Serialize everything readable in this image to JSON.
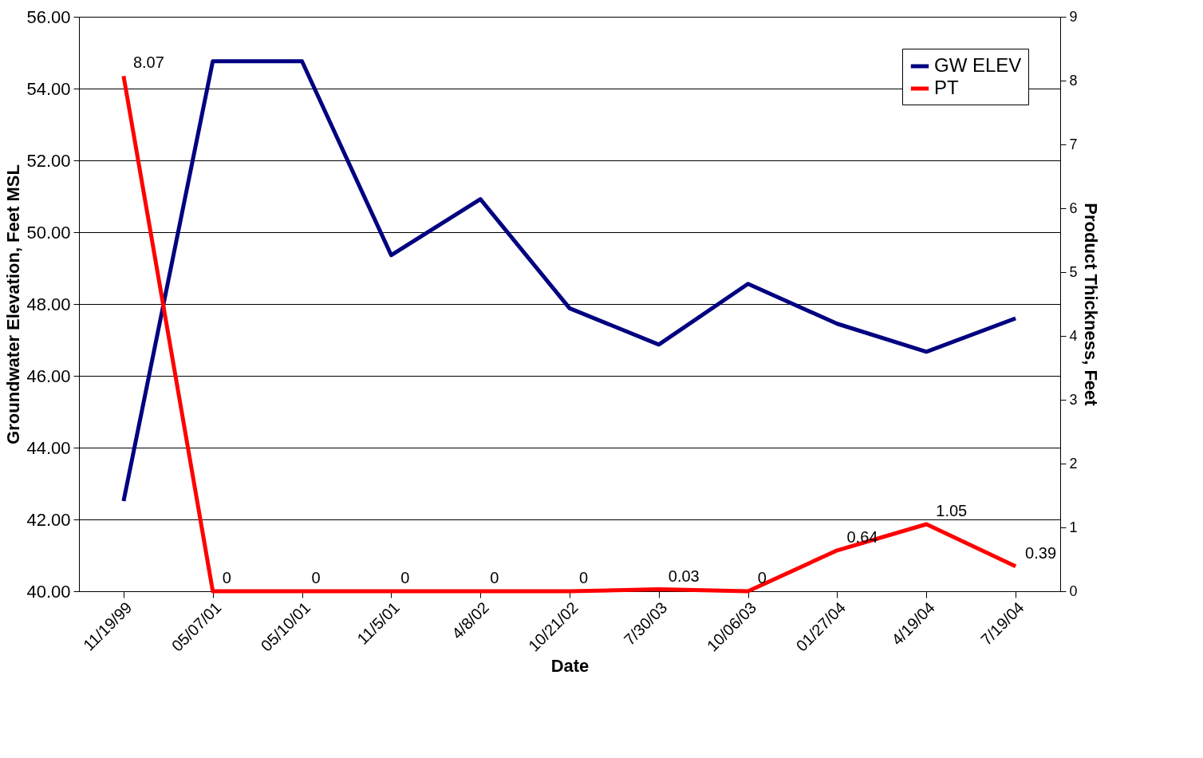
{
  "chart_data": {
    "type": "line",
    "xlabel": "Date",
    "ylabel": "Groundwater Elevation, Feet MSL",
    "y2label": "Product Thickness, Feet",
    "categories": [
      "11/19/99",
      "05/07/01",
      "05/10/01",
      "11/5/01",
      "4/8/02",
      "10/21/02",
      "7/30/03",
      "10/06/03",
      "01/27/04",
      "4/19/04",
      "7/19/04"
    ],
    "series": [
      {
        "name": "GW ELEV",
        "color": "#000080",
        "values": [
          42.51,
          54.76,
          54.76,
          49.36,
          50.92,
          47.88,
          46.87,
          48.56,
          47.45,
          46.67,
          47.6
        ]
      },
      {
        "name": "PT",
        "color": "#ff0000",
        "axis": "y2",
        "values": [
          8.07,
          0,
          0,
          0,
          0,
          0,
          0.03,
          0,
          0.64,
          1.05,
          0.39
        ],
        "value_labels": [
          "8.07",
          "0",
          "0",
          "0",
          "0",
          "0",
          "0.03",
          "0",
          "0.64",
          "1.05",
          "0.39"
        ]
      }
    ],
    "ylim": [
      40,
      56
    ],
    "yticks": [
      {
        "value": 40,
        "label": "40.00"
      },
      {
        "value": 42,
        "label": "42.00"
      },
      {
        "value": 44,
        "label": "44.00"
      },
      {
        "value": 46,
        "label": "46.00"
      },
      {
        "value": 48,
        "label": "48.00"
      },
      {
        "value": 50,
        "label": "50.00"
      },
      {
        "value": 52,
        "label": "52.00"
      },
      {
        "value": 54,
        "label": "54.00"
      },
      {
        "value": 56,
        "label": "56.00"
      }
    ],
    "y2lim": [
      0,
      9
    ],
    "y2ticks": [
      0,
      1,
      2,
      3,
      4,
      5,
      6,
      7,
      8,
      9
    ],
    "grid": "y",
    "legend": "top right",
    "marker": "none",
    "line_style": "solid"
  }
}
